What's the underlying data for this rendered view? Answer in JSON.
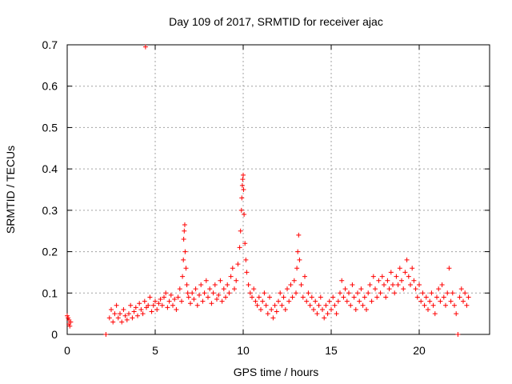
{
  "chart_data": {
    "type": "scatter",
    "title": "Day 109 of 2017, SRMTID for receiver ajac",
    "xlabel": "GPS time / hours",
    "ylabel": "SRMTID / TECUs",
    "xlim": [
      0,
      24
    ],
    "ylim": [
      0,
      0.7
    ],
    "x_ticks": [
      0,
      5,
      10,
      15,
      20
    ],
    "y_ticks": [
      0,
      0.1,
      0.2,
      0.3,
      0.4,
      0.5,
      0.6,
      0.7
    ],
    "x_tick_labels": [
      "0",
      "5",
      "10",
      "15",
      "20"
    ],
    "y_tick_labels": [
      "0",
      "0.1",
      "0.2",
      "0.3",
      "0.4",
      "0.5",
      "0.6",
      "0.7"
    ],
    "grid": true,
    "series": [
      {
        "name": "SRMTID",
        "marker": "plus",
        "color": "#ff0000",
        "points": [
          [
            0.0,
            0.045
          ],
          [
            0.05,
            0.04
          ],
          [
            0.1,
            0.035
          ],
          [
            0.1,
            0.025
          ],
          [
            0.15,
            0.02
          ],
          [
            0.2,
            0.03
          ],
          [
            2.2,
            0.0
          ],
          [
            2.4,
            0.04
          ],
          [
            2.5,
            0.06
          ],
          [
            2.6,
            0.03
          ],
          [
            2.7,
            0.05
          ],
          [
            2.8,
            0.07
          ],
          [
            2.9,
            0.04
          ],
          [
            3.0,
            0.05
          ],
          [
            3.1,
            0.03
          ],
          [
            3.2,
            0.06
          ],
          [
            3.3,
            0.045
          ],
          [
            3.4,
            0.035
          ],
          [
            3.5,
            0.05
          ],
          [
            3.6,
            0.07
          ],
          [
            3.7,
            0.04
          ],
          [
            3.8,
            0.055
          ],
          [
            3.9,
            0.065
          ],
          [
            4.0,
            0.045
          ],
          [
            4.1,
            0.075
          ],
          [
            4.2,
            0.06
          ],
          [
            4.3,
            0.05
          ],
          [
            4.4,
            0.08
          ],
          [
            4.45,
            0.695
          ],
          [
            4.5,
            0.065
          ],
          [
            4.6,
            0.07
          ],
          [
            4.7,
            0.09
          ],
          [
            4.8,
            0.055
          ],
          [
            4.9,
            0.07
          ],
          [
            5.0,
            0.08
          ],
          [
            5.1,
            0.06
          ],
          [
            5.2,
            0.075
          ],
          [
            5.3,
            0.085
          ],
          [
            5.4,
            0.07
          ],
          [
            5.5,
            0.09
          ],
          [
            5.6,
            0.1
          ],
          [
            5.7,
            0.065
          ],
          [
            5.8,
            0.08
          ],
          [
            5.9,
            0.095
          ],
          [
            6.0,
            0.07
          ],
          [
            6.1,
            0.085
          ],
          [
            6.2,
            0.06
          ],
          [
            6.3,
            0.09
          ],
          [
            6.4,
            0.11
          ],
          [
            6.5,
            0.08
          ],
          [
            6.55,
            0.14
          ],
          [
            6.6,
            0.18
          ],
          [
            6.62,
            0.23
          ],
          [
            6.65,
            0.25
          ],
          [
            6.68,
            0.265
          ],
          [
            6.7,
            0.2
          ],
          [
            6.75,
            0.16
          ],
          [
            6.8,
            0.12
          ],
          [
            6.85,
            0.1
          ],
          [
            6.9,
            0.09
          ],
          [
            7.0,
            0.075
          ],
          [
            7.1,
            0.1
          ],
          [
            7.2,
            0.085
          ],
          [
            7.3,
            0.11
          ],
          [
            7.4,
            0.07
          ],
          [
            7.5,
            0.095
          ],
          [
            7.6,
            0.12
          ],
          [
            7.7,
            0.08
          ],
          [
            7.8,
            0.1
          ],
          [
            7.9,
            0.13
          ],
          [
            8.0,
            0.09
          ],
          [
            8.1,
            0.11
          ],
          [
            8.2,
            0.075
          ],
          [
            8.3,
            0.1
          ],
          [
            8.4,
            0.12
          ],
          [
            8.5,
            0.085
          ],
          [
            8.6,
            0.095
          ],
          [
            8.7,
            0.13
          ],
          [
            8.8,
            0.08
          ],
          [
            8.9,
            0.11
          ],
          [
            9.0,
            0.09
          ],
          [
            9.1,
            0.12
          ],
          [
            9.2,
            0.1
          ],
          [
            9.3,
            0.14
          ],
          [
            9.4,
            0.16
          ],
          [
            9.5,
            0.11
          ],
          [
            9.6,
            0.13
          ],
          [
            9.7,
            0.17
          ],
          [
            9.8,
            0.21
          ],
          [
            9.85,
            0.25
          ],
          [
            9.9,
            0.3
          ],
          [
            9.92,
            0.33
          ],
          [
            9.95,
            0.36
          ],
          [
            9.97,
            0.375
          ],
          [
            10.0,
            0.385
          ],
          [
            10.02,
            0.35
          ],
          [
            10.05,
            0.29
          ],
          [
            10.1,
            0.22
          ],
          [
            10.15,
            0.18
          ],
          [
            10.2,
            0.15
          ],
          [
            10.3,
            0.12
          ],
          [
            10.4,
            0.1
          ],
          [
            10.5,
            0.09
          ],
          [
            10.6,
            0.11
          ],
          [
            10.7,
            0.08
          ],
          [
            10.8,
            0.07
          ],
          [
            10.9,
            0.09
          ],
          [
            11.0,
            0.06
          ],
          [
            11.1,
            0.08
          ],
          [
            11.2,
            0.1
          ],
          [
            11.3,
            0.07
          ],
          [
            11.4,
            0.05
          ],
          [
            11.5,
            0.09
          ],
          [
            11.6,
            0.06
          ],
          [
            11.7,
            0.04
          ],
          [
            11.8,
            0.07
          ],
          [
            11.9,
            0.055
          ],
          [
            12.0,
            0.08
          ],
          [
            12.1,
            0.1
          ],
          [
            12.2,
            0.07
          ],
          [
            12.3,
            0.09
          ],
          [
            12.4,
            0.06
          ],
          [
            12.5,
            0.11
          ],
          [
            12.6,
            0.08
          ],
          [
            12.7,
            0.12
          ],
          [
            12.8,
            0.09
          ],
          [
            12.9,
            0.13
          ],
          [
            13.0,
            0.1
          ],
          [
            13.05,
            0.16
          ],
          [
            13.1,
            0.2
          ],
          [
            13.15,
            0.24
          ],
          [
            13.2,
            0.18
          ],
          [
            13.3,
            0.12
          ],
          [
            13.4,
            0.09
          ],
          [
            13.5,
            0.14
          ],
          [
            13.6,
            0.08
          ],
          [
            13.7,
            0.1
          ],
          [
            13.8,
            0.07
          ],
          [
            13.9,
            0.09
          ],
          [
            14.0,
            0.06
          ],
          [
            14.1,
            0.08
          ],
          [
            14.2,
            0.05
          ],
          [
            14.3,
            0.07
          ],
          [
            14.4,
            0.09
          ],
          [
            14.5,
            0.06
          ],
          [
            14.6,
            0.04
          ],
          [
            14.7,
            0.07
          ],
          [
            14.8,
            0.05
          ],
          [
            14.9,
            0.08
          ],
          [
            15.0,
            0.06
          ],
          [
            15.1,
            0.09
          ],
          [
            15.2,
            0.07
          ],
          [
            15.3,
            0.05
          ],
          [
            15.4,
            0.08
          ],
          [
            15.5,
            0.1
          ],
          [
            15.6,
            0.13
          ],
          [
            15.7,
            0.09
          ],
          [
            15.8,
            0.11
          ],
          [
            15.9,
            0.08
          ],
          [
            16.0,
            0.1
          ],
          [
            16.1,
            0.07
          ],
          [
            16.2,
            0.12
          ],
          [
            16.3,
            0.09
          ],
          [
            16.4,
            0.06
          ],
          [
            16.5,
            0.1
          ],
          [
            16.6,
            0.08
          ],
          [
            16.7,
            0.11
          ],
          [
            16.8,
            0.07
          ],
          [
            16.9,
            0.09
          ],
          [
            17.0,
            0.06
          ],
          [
            17.1,
            0.1
          ],
          [
            17.2,
            0.12
          ],
          [
            17.3,
            0.08
          ],
          [
            17.4,
            0.14
          ],
          [
            17.5,
            0.11
          ],
          [
            17.6,
            0.09
          ],
          [
            17.7,
            0.13
          ],
          [
            17.8,
            0.1
          ],
          [
            17.9,
            0.14
          ],
          [
            18.0,
            0.12
          ],
          [
            18.1,
            0.09
          ],
          [
            18.2,
            0.13
          ],
          [
            18.3,
            0.11
          ],
          [
            18.4,
            0.15
          ],
          [
            18.5,
            0.12
          ],
          [
            18.6,
            0.1
          ],
          [
            18.7,
            0.14
          ],
          [
            18.8,
            0.12
          ],
          [
            18.9,
            0.16
          ],
          [
            19.0,
            0.13
          ],
          [
            19.1,
            0.11
          ],
          [
            19.2,
            0.15
          ],
          [
            19.3,
            0.18
          ],
          [
            19.4,
            0.14
          ],
          [
            19.5,
            0.12
          ],
          [
            19.6,
            0.16
          ],
          [
            19.7,
            0.13
          ],
          [
            19.8,
            0.11
          ],
          [
            19.9,
            0.09
          ],
          [
            20.0,
            0.12
          ],
          [
            20.1,
            0.08
          ],
          [
            20.2,
            0.1
          ],
          [
            20.3,
            0.07
          ],
          [
            20.4,
            0.09
          ],
          [
            20.5,
            0.06
          ],
          [
            20.6,
            0.08
          ],
          [
            20.7,
            0.1
          ],
          [
            20.8,
            0.07
          ],
          [
            20.9,
            0.05
          ],
          [
            21.0,
            0.09
          ],
          [
            21.1,
            0.11
          ],
          [
            21.2,
            0.08
          ],
          [
            21.3,
            0.12
          ],
          [
            21.4,
            0.09
          ],
          [
            21.5,
            0.07
          ],
          [
            21.6,
            0.1
          ],
          [
            21.7,
            0.16
          ],
          [
            21.8,
            0.08
          ],
          [
            21.9,
            0.1
          ],
          [
            22.0,
            0.07
          ],
          [
            22.1,
            0.05
          ],
          [
            22.2,
            0.0
          ],
          [
            22.3,
            0.09
          ],
          [
            22.4,
            0.11
          ],
          [
            22.5,
            0.08
          ],
          [
            22.6,
            0.1
          ],
          [
            22.7,
            0.07
          ],
          [
            22.8,
            0.09
          ]
        ]
      }
    ]
  }
}
